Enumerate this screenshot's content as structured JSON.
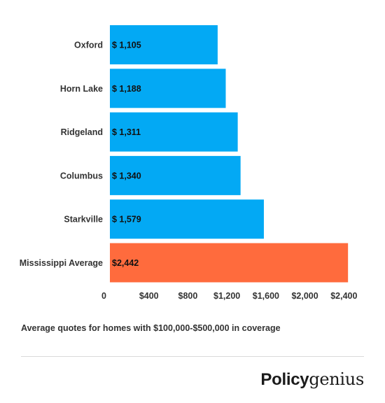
{
  "chart_data": {
    "type": "bar",
    "orientation": "horizontal",
    "categories": [
      "Oxford",
      "Horn Lake",
      "Ridgeland",
      "Columbus",
      "Starkville",
      "Mississippi Average"
    ],
    "values": [
      1105,
      1188,
      1311,
      1340,
      1579,
      2442
    ],
    "value_labels": [
      "$ 1,105",
      "$ 1,188",
      "$ 1,311",
      "$ 1,340",
      "$ 1,579",
      "$2,442"
    ],
    "colors": [
      "#03a9f4",
      "#03a9f4",
      "#03a9f4",
      "#03a9f4",
      "#03a9f4",
      "#ff6b3d"
    ],
    "xlim": [
      0,
      2650
    ],
    "ticks": [
      {
        "value": 0,
        "label": "0"
      },
      {
        "value": 400,
        "label": "$400"
      },
      {
        "value": 800,
        "label": "$800"
      },
      {
        "value": 1200,
        "label": "$1,200"
      },
      {
        "value": 1600,
        "label": "$1,600"
      },
      {
        "value": 2000,
        "label": "$2,000"
      },
      {
        "value": 2400,
        "label": "$2,400"
      }
    ],
    "grid": false,
    "title": "",
    "xlabel": "",
    "ylabel": ""
  },
  "caption": "Average quotes for homes with $100,000-$500,000 in coverage",
  "brand": {
    "part1": "Policy",
    "part2": "genius"
  }
}
